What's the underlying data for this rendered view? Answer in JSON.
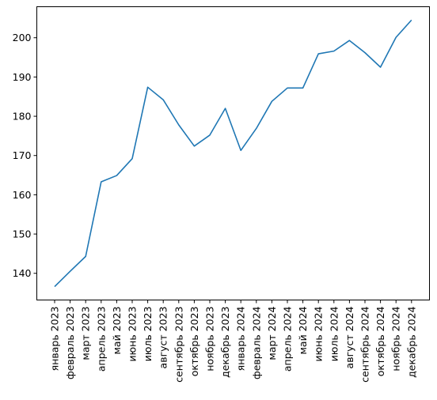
{
  "chart_data": {
    "type": "line",
    "categories": [
      "январь 2023",
      "февраль 2023",
      "март 2023",
      "апрель 2023",
      "май 2023",
      "июнь 2023",
      "июль 2023",
      "август 2023",
      "сентябрь 2023",
      "октябрь 2023",
      "ноябрь 2023",
      "декабрь 2023",
      "январь 2024",
      "февраль 2024",
      "март 2024",
      "апрель 2024",
      "май 2024",
      "июнь 2024",
      "июль 2024",
      "август 2024",
      "сентябрь 2024",
      "октябрь 2024",
      "ноябрь 2024",
      "декабрь 2024"
    ],
    "series": [
      {
        "values": [
          136.6,
          140.5,
          144.3,
          163.3,
          164.9,
          169.2,
          187.4,
          184.2,
          177.8,
          172.4,
          175.2,
          182.0,
          171.3,
          176.9,
          183.8,
          187.2,
          187.2,
          195.9,
          196.6,
          199.3,
          196.2,
          192.5,
          200.1,
          204.5
        ]
      }
    ],
    "yticks": [
      140,
      150,
      160,
      170,
      180,
      190,
      200
    ],
    "ylim": [
      133.2,
      207.9
    ],
    "grid": false,
    "legend": "none",
    "title": "",
    "xlabel": "",
    "ylabel": "",
    "line_color": "#1f77b4"
  }
}
